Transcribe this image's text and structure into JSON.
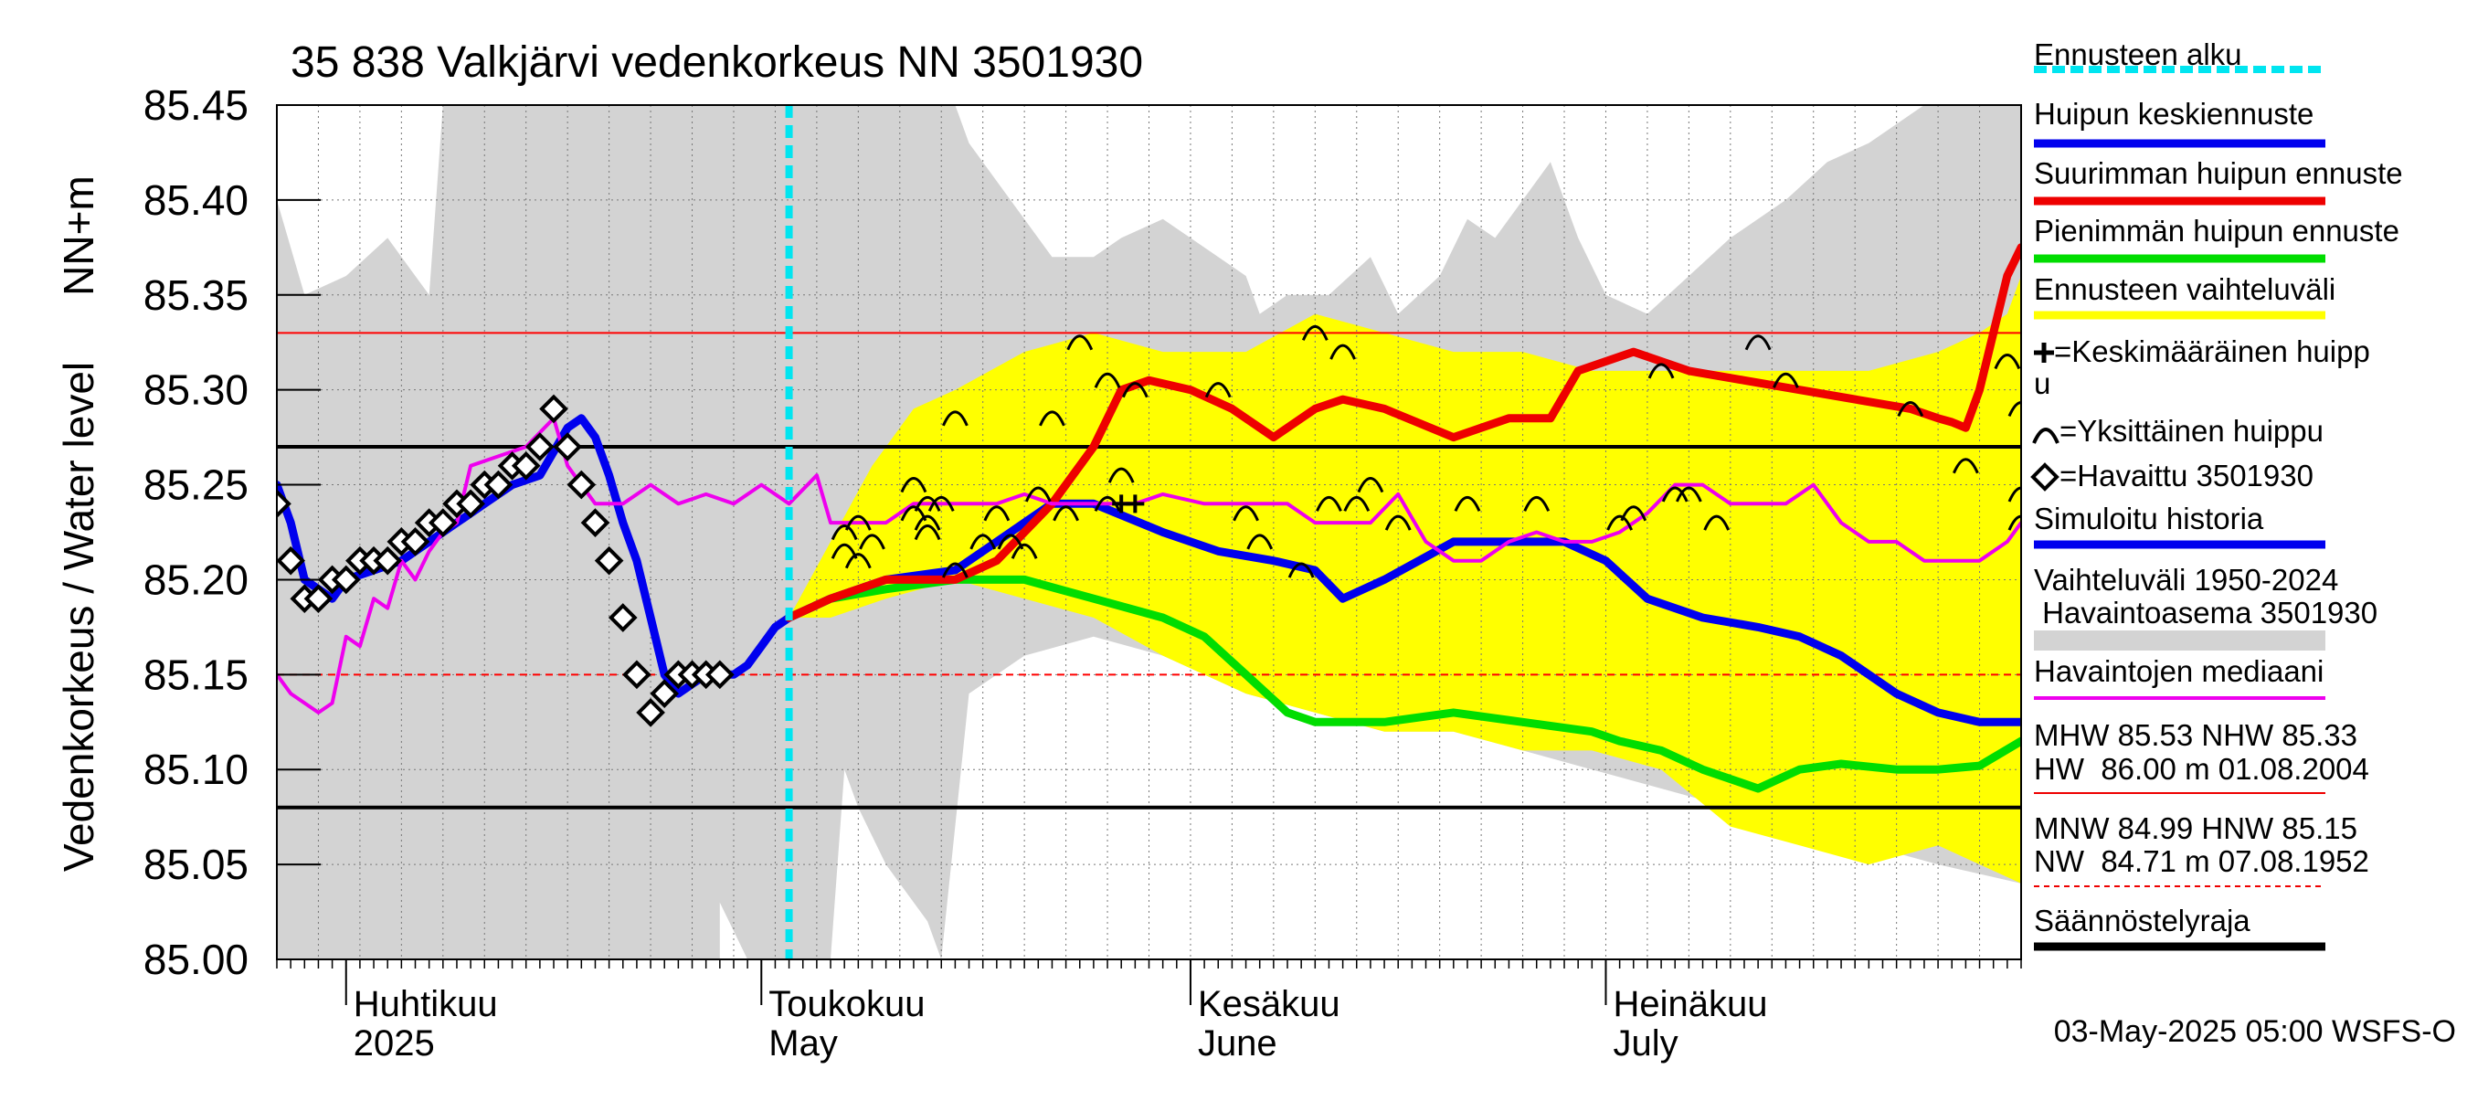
{
  "chart_data": {
    "type": "line",
    "title": "35 838 Valkjärvi vedenkorkeus NN 3501930",
    "ylabel_top": "NN+m",
    "ylabel": "Vedenkorkeus / Water level",
    "x_start": "2025-03-27",
    "x_end": "2025-07-31",
    "ylim": [
      85.0,
      85.45
    ],
    "yticks": [
      "85.00",
      "85.05",
      "85.10",
      "85.15",
      "85.20",
      "85.25",
      "85.30",
      "85.35",
      "85.40",
      "85.45"
    ],
    "grid": true,
    "month_labels": [
      {
        "date": "2025-04-01",
        "fi": "Huhtikuu",
        "en": "2025"
      },
      {
        "date": "2025-05-01",
        "fi": "Toukokuu",
        "en": "May"
      },
      {
        "date": "2025-06-01",
        "fi": "Kesäkuu",
        "en": "June"
      },
      {
        "date": "2025-07-01",
        "fi": "Heinäkuu",
        "en": "July"
      }
    ],
    "forecast_start": "2025-05-03",
    "reference_lines": [
      {
        "name": "MHW",
        "value": 85.53
      },
      {
        "name": "NHW",
        "value": 85.33,
        "color": "#ff0000"
      },
      {
        "name": "HNW",
        "value": 85.15,
        "color": "#ff0000",
        "dashed": true
      },
      {
        "name": "Säännöstelyraja",
        "value": 85.27,
        "color": "#000000"
      },
      {
        "name": "Säännöstelyraja",
        "value": 85.08,
        "color": "#000000"
      }
    ],
    "history_band_upper": {
      "x": [
        "2025-03-27",
        "2025-03-29",
        "2025-04-01",
        "2025-04-04",
        "2025-04-06",
        "2025-04-07",
        "2025-04-08",
        "2025-04-30",
        "2025-05-01",
        "2025-05-15",
        "2025-05-16",
        "2025-05-20",
        "2025-05-22",
        "2025-05-25",
        "2025-05-27",
        "2025-05-30",
        "2025-06-05",
        "2025-06-06",
        "2025-06-08",
        "2025-06-09",
        "2025-06-11",
        "2025-06-14",
        "2025-06-16",
        "2025-06-19",
        "2025-06-21",
        "2025-06-23",
        "2025-06-25",
        "2025-06-27",
        "2025-06-29",
        "2025-07-01",
        "2025-07-04",
        "2025-07-07",
        "2025-07-10",
        "2025-07-14",
        "2025-07-17",
        "2025-07-20",
        "2025-07-24",
        "2025-07-27",
        "2025-07-31"
      ],
      "values": [
        85.4,
        85.35,
        85.36,
        85.38,
        85.36,
        85.35,
        85.45,
        85.45,
        85.45,
        85.45,
        85.43,
        85.39,
        85.37,
        85.37,
        85.38,
        85.39,
        85.36,
        85.34,
        85.35,
        85.35,
        85.35,
        85.37,
        85.34,
        85.36,
        85.39,
        85.38,
        85.4,
        85.42,
        85.38,
        85.35,
        85.34,
        85.36,
        85.38,
        85.4,
        85.42,
        85.43,
        85.45,
        85.45,
        85.45
      ]
    },
    "history_band_lower": {
      "x": [
        "2025-03-27",
        "2025-04-28",
        "2025-04-28",
        "2025-04-30",
        "2025-05-01",
        "2025-05-02",
        "2025-05-04",
        "2025-05-06",
        "2025-05-07",
        "2025-05-08",
        "2025-05-10",
        "2025-05-13",
        "2025-05-14",
        "2025-05-16",
        "2025-05-20",
        "2025-05-25",
        "2025-05-30",
        "2025-06-05",
        "2025-06-10",
        "2025-06-15",
        "2025-06-20",
        "2025-06-25",
        "2025-06-30",
        "2025-07-05",
        "2025-07-10",
        "2025-07-15",
        "2025-07-20",
        "2025-07-25",
        "2025-07-31"
      ],
      "values": [
        85.0,
        85.0,
        85.03,
        85.0,
        85.0,
        85.0,
        85.0,
        85.0,
        85.1,
        85.08,
        85.05,
        85.02,
        85.0,
        85.14,
        85.16,
        85.17,
        85.16,
        85.14,
        85.13,
        85.12,
        85.12,
        85.11,
        85.1,
        85.09,
        85.08,
        85.07,
        85.06,
        85.05,
        85.04
      ]
    },
    "forecast_band_upper": {
      "x": [
        "2025-05-03",
        "2025-05-06",
        "2025-05-09",
        "2025-05-12",
        "2025-05-15",
        "2025-05-20",
        "2025-05-25",
        "2025-05-30",
        "2025-06-05",
        "2025-06-10",
        "2025-06-15",
        "2025-06-20",
        "2025-06-25",
        "2025-06-30",
        "2025-07-05",
        "2025-07-10",
        "2025-07-15",
        "2025-07-20",
        "2025-07-25",
        "2025-07-28",
        "2025-07-30",
        "2025-07-31"
      ],
      "values": [
        85.18,
        85.22,
        85.26,
        85.29,
        85.3,
        85.32,
        85.33,
        85.32,
        85.32,
        85.34,
        85.33,
        85.32,
        85.32,
        85.31,
        85.31,
        85.31,
        85.31,
        85.31,
        85.32,
        85.33,
        85.34,
        85.36
      ]
    },
    "forecast_band_lower": {
      "x": [
        "2025-05-03",
        "2025-05-06",
        "2025-05-10",
        "2025-05-15",
        "2025-05-20",
        "2025-05-25",
        "2025-05-30",
        "2025-06-05",
        "2025-06-10",
        "2025-06-15",
        "2025-06-20",
        "2025-06-25",
        "2025-06-30",
        "2025-07-05",
        "2025-07-10",
        "2025-07-15",
        "2025-07-20",
        "2025-07-25",
        "2025-07-31"
      ],
      "values": [
        85.18,
        85.18,
        85.19,
        85.2,
        85.19,
        85.18,
        85.16,
        85.14,
        85.13,
        85.12,
        85.12,
        85.11,
        85.11,
        85.1,
        85.07,
        85.06,
        85.05,
        85.06,
        85.04
      ]
    },
    "series": [
      {
        "name": "Pienimmän huipun ennuste",
        "color": "#00dd00",
        "width": 9,
        "x": [
          "2025-05-03",
          "2025-05-06",
          "2025-05-10",
          "2025-05-15",
          "2025-05-20",
          "2025-05-25",
          "2025-05-30",
          "2025-06-02",
          "2025-06-05",
          "2025-06-08",
          "2025-06-10",
          "2025-06-15",
          "2025-06-20",
          "2025-06-25",
          "2025-06-30",
          "2025-07-02",
          "2025-07-05",
          "2025-07-08",
          "2025-07-12",
          "2025-07-15",
          "2025-07-18",
          "2025-07-22",
          "2025-07-25",
          "2025-07-28",
          "2025-07-31"
        ],
        "values": [
          85.18,
          85.19,
          85.195,
          85.2,
          85.2,
          85.19,
          85.18,
          85.17,
          85.15,
          85.13,
          85.125,
          85.125,
          85.13,
          85.125,
          85.12,
          85.115,
          85.11,
          85.1,
          85.09,
          85.1,
          85.103,
          85.1,
          85.1,
          85.102,
          85.115
        ]
      },
      {
        "name": "Huipun keskiennuste",
        "color": "#0000ee",
        "width": 9,
        "x": [
          "2025-04-28",
          "2025-04-29",
          "2025-04-30",
          "2025-05-01",
          "2025-05-02",
          "2025-05-03",
          "2025-05-06",
          "2025-05-10",
          "2025-05-15",
          "2025-05-18",
          "2025-05-22",
          "2025-05-25",
          "2025-05-30",
          "2025-06-03",
          "2025-06-07",
          "2025-06-10",
          "2025-06-12",
          "2025-06-15",
          "2025-06-20",
          "2025-06-25",
          "2025-06-28",
          "2025-07-01",
          "2025-07-04",
          "2025-07-08",
          "2025-07-12",
          "2025-07-15",
          "2025-07-18",
          "2025-07-22",
          "2025-07-25",
          "2025-07-28",
          "2025-07-31"
        ],
        "values": [
          85.15,
          85.15,
          85.155,
          85.165,
          85.175,
          85.18,
          85.19,
          85.2,
          85.205,
          85.22,
          85.24,
          85.24,
          85.225,
          85.215,
          85.21,
          85.205,
          85.19,
          85.2,
          85.22,
          85.22,
          85.22,
          85.21,
          85.19,
          85.18,
          85.175,
          85.17,
          85.16,
          85.14,
          85.13,
          85.125,
          85.125
        ]
      },
      {
        "name": "Suurimman huipun ennuste",
        "color": "#ee0000",
        "width": 9,
        "x": [
          "2025-05-03",
          "2025-05-06",
          "2025-05-10",
          "2025-05-15",
          "2025-05-18",
          "2025-05-22",
          "2025-05-25",
          "2025-05-27",
          "2025-05-29",
          "2025-06-01",
          "2025-06-04",
          "2025-06-07",
          "2025-06-10",
          "2025-06-12",
          "2025-06-15",
          "2025-06-20",
          "2025-06-24",
          "2025-06-27",
          "2025-06-29",
          "2025-07-03",
          "2025-07-07",
          "2025-07-11",
          "2025-07-15",
          "2025-07-19",
          "2025-07-23",
          "2025-07-25",
          "2025-07-26",
          "2025-07-27",
          "2025-07-28",
          "2025-07-29",
          "2025-07-30",
          "2025-07-31"
        ],
        "values": [
          85.18,
          85.19,
          85.2,
          85.2,
          85.21,
          85.24,
          85.27,
          85.3,
          85.305,
          85.3,
          85.29,
          85.275,
          85.29,
          85.295,
          85.29,
          85.275,
          85.285,
          85.285,
          85.31,
          85.32,
          85.31,
          85.305,
          85.3,
          85.295,
          85.29,
          85.285,
          85.283,
          85.28,
          85.3,
          85.33,
          85.36,
          85.375
        ]
      },
      {
        "name": "Simuloitu historia",
        "color": "#0000ee",
        "width": 9,
        "x": [
          "2025-03-27",
          "2025-03-28",
          "2025-03-29",
          "2025-03-31",
          "2025-04-01",
          "2025-04-03",
          "2025-04-05",
          "2025-04-07",
          "2025-04-09",
          "2025-04-11",
          "2025-04-13",
          "2025-04-15",
          "2025-04-17",
          "2025-04-18",
          "2025-04-19",
          "2025-04-20",
          "2025-04-21",
          "2025-04-22",
          "2025-04-23",
          "2025-04-24",
          "2025-04-25",
          "2025-04-26",
          "2025-04-27",
          "2025-04-28"
        ],
        "values": [
          85.25,
          85.23,
          85.2,
          85.19,
          85.2,
          85.205,
          85.21,
          85.22,
          85.23,
          85.24,
          85.25,
          85.255,
          85.28,
          85.285,
          85.275,
          85.255,
          85.23,
          85.21,
          85.18,
          85.15,
          85.14,
          85.145,
          85.15,
          85.15
        ]
      },
      {
        "name": "Havaintojen mediaani",
        "color": "#ee00ee",
        "width": 4,
        "x": [
          "2025-03-27",
          "2025-03-28",
          "2025-03-30",
          "2025-03-31",
          "2025-04-01",
          "2025-04-02",
          "2025-04-03",
          "2025-04-04",
          "2025-04-05",
          "2025-04-06",
          "2025-04-07",
          "2025-04-08",
          "2025-04-09",
          "2025-04-10",
          "2025-04-12",
          "2025-04-14",
          "2025-04-16",
          "2025-04-17",
          "2025-04-18",
          "2025-04-19",
          "2025-04-21",
          "2025-04-23",
          "2025-04-25",
          "2025-04-27",
          "2025-04-29",
          "2025-05-01",
          "2025-05-03",
          "2025-05-05",
          "2025-05-06",
          "2025-05-08",
          "2025-05-10",
          "2025-05-12",
          "2025-05-15",
          "2025-05-18",
          "2025-05-20",
          "2025-05-22",
          "2025-05-25",
          "2025-05-28",
          "2025-05-30",
          "2025-06-02",
          "2025-06-05",
          "2025-06-08",
          "2025-06-10",
          "2025-06-12",
          "2025-06-14",
          "2025-06-16",
          "2025-06-18",
          "2025-06-20",
          "2025-06-22",
          "2025-06-24",
          "2025-06-26",
          "2025-06-28",
          "2025-06-30",
          "2025-07-02",
          "2025-07-04",
          "2025-07-06",
          "2025-07-08",
          "2025-07-10",
          "2025-07-12",
          "2025-07-14",
          "2025-07-16",
          "2025-07-18",
          "2025-07-20",
          "2025-07-22",
          "2025-07-24",
          "2025-07-26",
          "2025-07-28",
          "2025-07-30",
          "2025-07-31"
        ],
        "values": [
          85.15,
          85.14,
          85.13,
          85.135,
          85.17,
          85.165,
          85.19,
          85.185,
          85.21,
          85.2,
          85.215,
          85.225,
          85.23,
          85.26,
          85.265,
          85.27,
          85.285,
          85.26,
          85.25,
          85.24,
          85.24,
          85.25,
          85.24,
          85.245,
          85.24,
          85.25,
          85.24,
          85.255,
          85.23,
          85.23,
          85.23,
          85.24,
          85.24,
          85.24,
          85.245,
          85.24,
          85.24,
          85.24,
          85.245,
          85.24,
          85.24,
          85.24,
          85.23,
          85.23,
          85.23,
          85.245,
          85.22,
          85.21,
          85.21,
          85.22,
          85.225,
          85.22,
          85.22,
          85.225,
          85.235,
          85.25,
          85.25,
          85.24,
          85.24,
          85.24,
          85.25,
          85.23,
          85.22,
          85.22,
          85.21,
          85.21,
          85.21,
          85.22,
          85.23
        ]
      }
    ],
    "observed_points": {
      "name": "Havaittu 3501930",
      "x": [
        "2025-03-27",
        "2025-03-28",
        "2025-03-29",
        "2025-03-30",
        "2025-03-31",
        "2025-04-01",
        "2025-04-02",
        "2025-04-03",
        "2025-04-04",
        "2025-04-05",
        "2025-04-06",
        "2025-04-07",
        "2025-04-08",
        "2025-04-09",
        "2025-04-10",
        "2025-04-11",
        "2025-04-12",
        "2025-04-13",
        "2025-04-14",
        "2025-04-15",
        "2025-04-16",
        "2025-04-17",
        "2025-04-18",
        "2025-04-19",
        "2025-04-20",
        "2025-04-21",
        "2025-04-22",
        "2025-04-23",
        "2025-04-24",
        "2025-04-25",
        "2025-04-26",
        "2025-04-27",
        "2025-04-28"
      ],
      "values": [
        85.24,
        85.21,
        85.19,
        85.19,
        85.2,
        85.2,
        85.21,
        85.21,
        85.21,
        85.22,
        85.22,
        85.23,
        85.23,
        85.24,
        85.24,
        85.25,
        85.25,
        85.26,
        85.26,
        85.27,
        85.29,
        85.27,
        85.25,
        85.23,
        85.21,
        85.18,
        85.15,
        85.13,
        85.14,
        85.15,
        85.15,
        85.15,
        85.15
      ]
    },
    "individual_peaks": {
      "name": "Yksittäinen huippu",
      "x": [
        "2025-05-07",
        "2025-05-07",
        "2025-05-08",
        "2025-05-08",
        "2025-05-09",
        "2025-05-12",
        "2025-05-12",
        "2025-05-13",
        "2025-05-13",
        "2025-05-13",
        "2025-05-14",
        "2025-05-15",
        "2025-05-15",
        "2025-05-17",
        "2025-05-18",
        "2025-05-19",
        "2025-05-20",
        "2025-05-21",
        "2025-05-22",
        "2025-05-23",
        "2025-05-24",
        "2025-05-26",
        "2025-05-26",
        "2025-05-27",
        "2025-05-28",
        "2025-06-03",
        "2025-06-05",
        "2025-06-06",
        "2025-06-09",
        "2025-06-10",
        "2025-06-11",
        "2025-06-12",
        "2025-06-13",
        "2025-06-14",
        "2025-06-16",
        "2025-06-21",
        "2025-06-26",
        "2025-07-02",
        "2025-07-03",
        "2025-07-05",
        "2025-07-06",
        "2025-07-07",
        "2025-07-09",
        "2025-07-12",
        "2025-07-14",
        "2025-07-23",
        "2025-07-27",
        "2025-07-30",
        "2025-07-31",
        "2025-07-31",
        "2025-07-31"
      ],
      "values": [
        85.225,
        85.215,
        85.23,
        85.21,
        85.22,
        85.25,
        85.235,
        85.225,
        85.23,
        85.24,
        85.24,
        85.285,
        85.205,
        85.22,
        85.235,
        85.22,
        85.215,
        85.245,
        85.285,
        85.235,
        85.325,
        85.305,
        85.24,
        85.255,
        85.3,
        85.3,
        85.235,
        85.22,
        85.205,
        85.33,
        85.24,
        85.32,
        85.24,
        85.25,
        85.23,
        85.24,
        85.24,
        85.23,
        85.235,
        85.31,
        85.245,
        85.245,
        85.23,
        85.325,
        85.305,
        85.29,
        85.26,
        85.315,
        85.29,
        85.245,
        85.23
      ]
    },
    "mean_peaks": {
      "name": "Keskimääräinen huippu",
      "x": [
        "2025-05-27",
        "2025-05-28"
      ],
      "values": [
        85.24,
        85.24
      ]
    },
    "legend": [
      {
        "label": "Ennusteen alku",
        "kind": "dashed",
        "color": "#00e5f0"
      },
      {
        "label": "Huipun keskiennuste",
        "kind": "line",
        "color": "#0000ee"
      },
      {
        "label": "Suurimman huipun ennuste",
        "kind": "line",
        "color": "#ee0000"
      },
      {
        "label": "Pienimmän huipun ennuste",
        "kind": "line",
        "color": "#00dd00"
      },
      {
        "label": "Ennusteen vaihteluväli",
        "kind": "line",
        "color": "#ffff00"
      },
      {
        "label": "=Keskimääräinen huipp",
        "label2": "u",
        "kind": "plus-symbol"
      },
      {
        "label": "=Yksittäinen huippu",
        "kind": "arc-symbol"
      },
      {
        "label": "=Havaittu 3501930",
        "kind": "diamond-symbol"
      },
      {
        "label": "Simuloitu historia",
        "kind": "line",
        "color": "#0000ee"
      },
      {
        "label": "Vaihteluväli 1950-2024",
        "label2": " Havaintoasema 3501930",
        "kind": "line",
        "color": "#d3d3d3"
      },
      {
        "label": "Havaintojen mediaani",
        "kind": "line",
        "color": "#ee00ee"
      },
      {
        "label": "MHW  85.53 NHW  85.33",
        "label2": "HW  86.00 m 01.08.2004",
        "kind": "thin",
        "color": "#ee0000"
      },
      {
        "label": "MNW  84.99 HNW  85.15",
        "label2": "NW  84.71 m 07.08.1952",
        "kind": "thin-dashed",
        "color": "#ee0000"
      },
      {
        "label": "Säännöstelyraja",
        "kind": "line",
        "color": "#000000"
      }
    ],
    "footer": "03-May-2025 05:00 WSFS-O"
  }
}
